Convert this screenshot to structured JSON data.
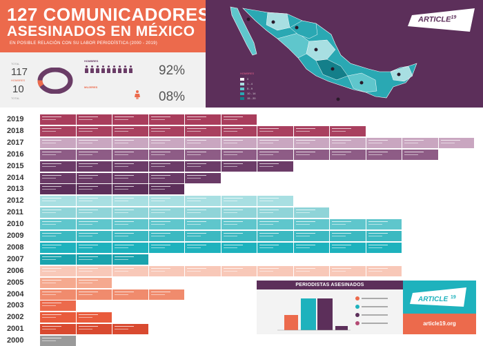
{
  "header": {
    "title_line1": "127 COMUNICADORES",
    "title_line2": "ASESINADOS EN MÉXICO",
    "subtitle": "EN POSIBLE RELACIÓN CON SU LABOR PERIODÍSTICA (2000 - 2019)"
  },
  "stats": {
    "total_label": "TOTAL",
    "total_value": "117",
    "total_sub": "HOMBRES",
    "women_value": "10",
    "women_label": "TOTAL",
    "men_label": "HOMBRES",
    "men_pct": "92%",
    "women_cat_label": "MUJERES",
    "women_pct": "08%",
    "men_share": 0.92,
    "women_share": 0.08
  },
  "map": {
    "legend_title": "HOMBRES",
    "legend_items": [
      "0",
      "1 - 4",
      "5 - 9",
      "10 - 14",
      "15 - 20"
    ],
    "legend_colors": [
      "#ffffff",
      "#a8dfe2",
      "#5fc6cc",
      "#2aa8b3",
      "#147f8a"
    ]
  },
  "logo": {
    "text": "ARTICLE",
    "number": "19"
  },
  "years": [
    "2019",
    "2018",
    "2017",
    "2016",
    "2015",
    "2014",
    "2013",
    "2012",
    "2011",
    "2010",
    "2009",
    "2008",
    "2007",
    "2006",
    "2005",
    "2004",
    "2003",
    "2002",
    "2001",
    "2000"
  ],
  "bottom": {
    "panel_title": "PERIODISTAS ASESINADOS",
    "url": "article19.org"
  },
  "colors": {
    "orange": "#ec6a4c",
    "purple": "#5c2f5a",
    "teal": "#1eb2bd"
  }
}
